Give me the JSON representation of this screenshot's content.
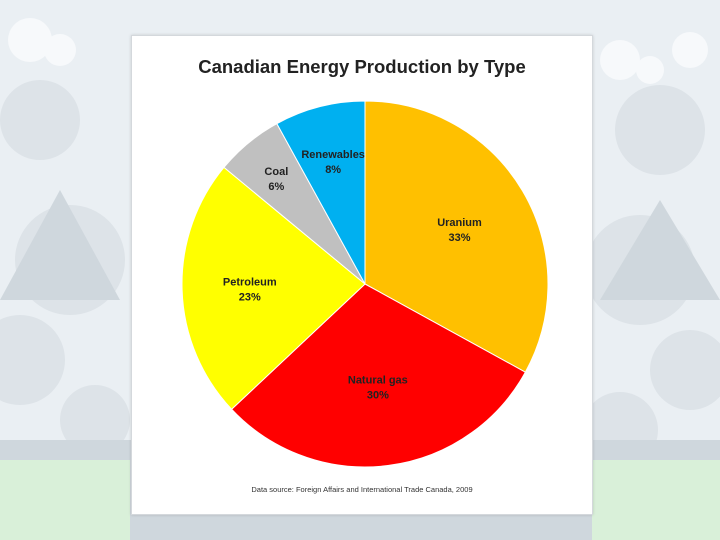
{
  "chart_data": {
    "type": "pie",
    "title": "Canadian Energy Production by Type",
    "source": "Data source: Foreign Affairs and International Trade Canada, 2009",
    "slices": [
      {
        "label": "Uranium",
        "value": 33,
        "value_label": "33%",
        "color": "#FFC000"
      },
      {
        "label": "Natural gas",
        "value": 30,
        "value_label": "30%",
        "color": "#FF0000"
      },
      {
        "label": "Petroleum",
        "value": 23,
        "value_label": "23%",
        "color": "#FFFF00"
      },
      {
        "label": "Coal",
        "value": 6,
        "value_label": "6%",
        "color": "#C0C0C0"
      },
      {
        "label": "Renewables",
        "value": 8,
        "value_label": "8%",
        "color": "#00B0F0"
      }
    ],
    "start_angle": "12 o'clock",
    "direction": "clockwise",
    "legend": "none",
    "data_labels": "inside"
  }
}
